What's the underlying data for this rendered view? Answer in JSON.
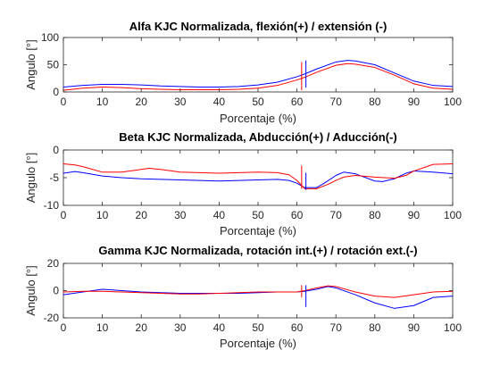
{
  "chart_data": [
    {
      "type": "line",
      "title": "Alfa KJC Normalizada, flexión(+) / extensión (-)",
      "xlabel": "Porcentaje (%)",
      "ylabel": "Angulo [°]",
      "xlim": [
        0,
        100
      ],
      "ylim": [
        0,
        100
      ],
      "xticks": [
        "0",
        "10",
        "20",
        "30",
        "40",
        "50",
        "60",
        "70",
        "80",
        "90",
        "100"
      ],
      "yticks": [
        "0",
        "50",
        "100"
      ],
      "grid": false,
      "series": [
        {
          "color": "#0000ff",
          "x": [
            0,
            5,
            10,
            15,
            20,
            25,
            30,
            35,
            40,
            45,
            50,
            55,
            60,
            62,
            65,
            70,
            73,
            75,
            80,
            85,
            90,
            95,
            100
          ],
          "y": [
            9,
            12,
            14,
            14,
            13,
            11,
            10,
            9,
            9,
            10,
            13,
            18,
            28,
            33,
            42,
            55,
            58,
            57,
            50,
            35,
            20,
            12,
            10
          ]
        },
        {
          "color": "#ff0000",
          "x": [
            0,
            5,
            10,
            15,
            20,
            25,
            30,
            35,
            40,
            45,
            50,
            55,
            60,
            62,
            65,
            70,
            73,
            75,
            80,
            85,
            90,
            95,
            100
          ],
          "y": [
            3,
            7,
            9,
            8,
            6,
            5,
            4,
            4,
            4,
            5,
            7,
            12,
            22,
            27,
            36,
            49,
            52,
            51,
            45,
            31,
            15,
            7,
            5
          ]
        }
      ],
      "markers": [
        {
          "color": "#ff0000",
          "x": 61.2,
          "y1": 3,
          "y2": 55
        },
        {
          "color": "#0000ff",
          "x": 62.3,
          "y1": 8,
          "y2": 58
        }
      ]
    },
    {
      "type": "line",
      "title": "Beta KJC Normalizada, Abducción(+) / Aducción(-)",
      "xlabel": "Porcentaje (%)",
      "ylabel": "Angulo [°]",
      "xlim": [
        0,
        100
      ],
      "ylim": [
        -10,
        0
      ],
      "xticks": [
        "0",
        "10",
        "20",
        "30",
        "40",
        "50",
        "60",
        "70",
        "80",
        "90",
        "100"
      ],
      "yticks": [
        "-10",
        "-5",
        "0"
      ],
      "grid": false,
      "series": [
        {
          "color": "#0000ff",
          "x": [
            0,
            3,
            5,
            10,
            15,
            20,
            25,
            30,
            35,
            40,
            45,
            50,
            55,
            58,
            60,
            62,
            65,
            67,
            70,
            72,
            75,
            80,
            82,
            85,
            88,
            90,
            95,
            100
          ],
          "y": [
            -4.2,
            -3.9,
            -4.1,
            -4.7,
            -5.0,
            -5.2,
            -5.3,
            -5.4,
            -5.5,
            -5.6,
            -5.5,
            -5.4,
            -5.3,
            -5.5,
            -6.0,
            -6.8,
            -6.8,
            -6.0,
            -4.6,
            -4.0,
            -4.3,
            -5.6,
            -5.7,
            -5.2,
            -4.2,
            -3.8,
            -4.0,
            -4.3
          ]
        },
        {
          "color": "#ff0000",
          "x": [
            0,
            3,
            5,
            10,
            15,
            20,
            22,
            25,
            30,
            35,
            40,
            45,
            50,
            55,
            58,
            60,
            62,
            65,
            68,
            70,
            72,
            75,
            80,
            85,
            88,
            90,
            95,
            100
          ],
          "y": [
            -2.5,
            -2.7,
            -3.0,
            -4.0,
            -4.0,
            -3.5,
            -3.3,
            -3.5,
            -4.0,
            -4.1,
            -4.2,
            -4.1,
            -4.0,
            -4.1,
            -4.5,
            -5.5,
            -7.0,
            -7.0,
            -6.2,
            -5.5,
            -4.9,
            -4.6,
            -4.9,
            -5.1,
            -4.6,
            -3.8,
            -2.6,
            -2.5
          ]
        }
      ],
      "markers": [
        {
          "color": "#ff0000",
          "x": 61.2,
          "y1": -7.0,
          "y2": -2.8
        },
        {
          "color": "#0000ff",
          "x": 62.3,
          "y1": -7.2,
          "y2": -4.1
        }
      ]
    },
    {
      "type": "line",
      "title": "Gamma KJC Normalizada, rotación int.(+) / rotación ext.(-)",
      "xlabel": "Porcentaje (%)",
      "ylabel": "Angulo [°]",
      "xlim": [
        0,
        100
      ],
      "ylim": [
        -20,
        20
      ],
      "xticks": [
        "0",
        "10",
        "20",
        "30",
        "40",
        "50",
        "60",
        "70",
        "80",
        "90",
        "100"
      ],
      "yticks": [
        "-20",
        "0",
        "20"
      ],
      "grid": false,
      "series": [
        {
          "color": "#0000ff",
          "x": [
            0,
            5,
            10,
            15,
            20,
            25,
            30,
            35,
            40,
            45,
            50,
            55,
            60,
            62,
            65,
            68,
            70,
            75,
            80,
            85,
            90,
            95,
            100
          ],
          "y": [
            -3,
            -1,
            1,
            0,
            -1,
            -1.5,
            -2,
            -2,
            -2,
            -2,
            -1.5,
            -1,
            -1,
            -0.5,
            1,
            3,
            2,
            -3,
            -9,
            -13,
            -11,
            -5,
            -4
          ]
        },
        {
          "color": "#ff0000",
          "x": [
            0,
            5,
            10,
            15,
            20,
            25,
            30,
            35,
            40,
            45,
            50,
            55,
            60,
            62,
            65,
            68,
            70,
            75,
            80,
            85,
            90,
            95,
            100
          ],
          "y": [
            -1,
            -0.5,
            -0.5,
            -1,
            -1.5,
            -2,
            -2.5,
            -2.5,
            -2,
            -1.5,
            -1,
            -1,
            -1,
            0,
            2,
            3.5,
            3,
            -1,
            -4,
            -5,
            -3,
            -1,
            -0.5
          ]
        }
      ],
      "markers": [
        {
          "color": "#ff0000",
          "x": 61.2,
          "y1": -5,
          "y2": 4
        },
        {
          "color": "#0000ff",
          "x": 62.3,
          "y1": -12,
          "y2": 4
        }
      ]
    }
  ]
}
